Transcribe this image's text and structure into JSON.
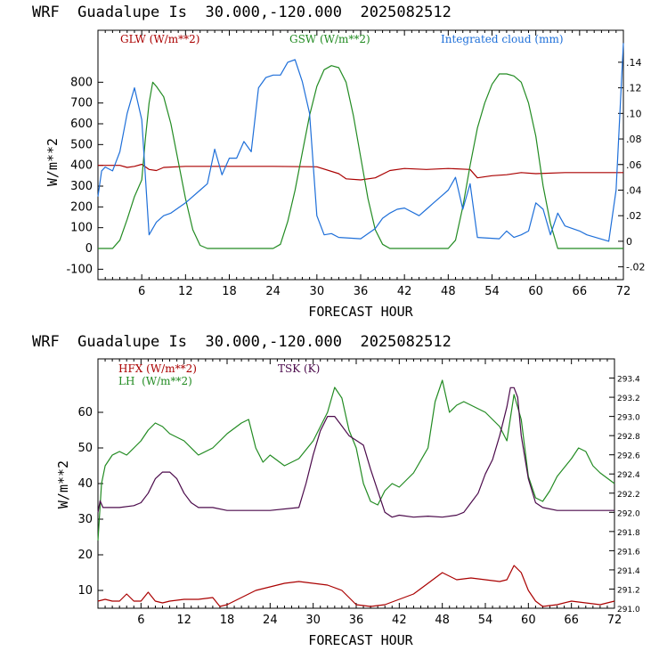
{
  "chart_data": [
    {
      "type": "line",
      "title": "WRF  Guadalupe Is  30.000,-120.000  2025082512",
      "xlabel": "FORECAST HOUR",
      "ylabel": "W/m**2",
      "xlim": [
        0,
        72
      ],
      "ylim": [
        -150,
        1050
      ],
      "y2lim": [
        -0.03,
        0.165
      ],
      "x_ticks": [
        6,
        12,
        18,
        24,
        30,
        36,
        42,
        48,
        54,
        60,
        66,
        72
      ],
      "y_ticks": [
        -100,
        0,
        100,
        200,
        300,
        400,
        500,
        600,
        700,
        800
      ],
      "y2_ticks": [
        -0.02,
        0,
        0.02,
        0.04,
        0.06,
        0.08,
        0.1,
        0.12,
        0.14
      ],
      "y2_tick_labels": [
        "-.02",
        "0",
        ".02",
        ".04",
        ".06",
        ".08",
        ".10",
        ".12",
        ".14"
      ],
      "legend": [
        "GLW (W/m**2)",
        "GSW (W/m**2)",
        "Integrated cloud (mm)"
      ],
      "series": [
        {
          "name": "GLW (W/m**2)",
          "color": "#aa0000",
          "axis": "left",
          "x": [
            0,
            3,
            4,
            5,
            6,
            7,
            8,
            9,
            12,
            18,
            24,
            30,
            33,
            34,
            36,
            38,
            40,
            42,
            45,
            48,
            51,
            52,
            54,
            56,
            58,
            60,
            64,
            72
          ],
          "y": [
            400,
            400,
            390,
            395,
            405,
            380,
            375,
            390,
            395,
            395,
            395,
            393,
            360,
            335,
            330,
            340,
            375,
            385,
            380,
            385,
            380,
            340,
            350,
            355,
            365,
            360,
            365,
            365
          ]
        },
        {
          "name": "GSW (W/m**2)",
          "color": "#228b22",
          "axis": "left",
          "x": [
            0,
            1,
            2,
            3,
            4,
            5,
            6,
            6.5,
            7,
            7.5,
            8,
            9,
            10,
            11,
            12,
            13,
            14,
            15,
            24,
            25,
            26,
            27,
            28,
            29,
            30,
            31,
            32,
            33,
            34,
            35,
            36,
            37,
            38,
            39,
            40,
            48,
            49,
            50,
            51,
            52,
            53,
            54,
            55,
            56,
            57,
            58,
            59,
            60,
            61,
            62,
            63,
            72
          ],
          "y": [
            0,
            0,
            0,
            40,
            140,
            250,
            330,
            530,
            700,
            800,
            780,
            730,
            600,
            420,
            240,
            90,
            15,
            0,
            0,
            20,
            130,
            280,
            460,
            640,
            780,
            860,
            880,
            870,
            800,
            640,
            440,
            240,
            90,
            20,
            0,
            0,
            40,
            200,
            400,
            580,
            700,
            790,
            840,
            840,
            830,
            800,
            700,
            540,
            300,
            120,
            0,
            0
          ]
        },
        {
          "name": "Integrated cloud (mm)",
          "color": "#1e6fd9",
          "axis": "right",
          "x": [
            0,
            0.5,
            1,
            2,
            3,
            4,
            5,
            6,
            6.5,
            7,
            7.5,
            8,
            9,
            10,
            12,
            14,
            15,
            16,
            17,
            18,
            19,
            20,
            21,
            22,
            23,
            24,
            25,
            26,
            27,
            28,
            29,
            30,
            31,
            32,
            33,
            36,
            38,
            39,
            40,
            41,
            42,
            44,
            45,
            46,
            47,
            48,
            49,
            50,
            51,
            52,
            55,
            56,
            57,
            58,
            59,
            60,
            61,
            62,
            63,
            64,
            65,
            66,
            67,
            70,
            71,
            72
          ],
          "y": [
            0.035,
            0.055,
            0.058,
            0.055,
            0.07,
            0.1,
            0.12,
            0.095,
            0.05,
            0.005,
            0.01,
            0.015,
            0.02,
            0.022,
            0.03,
            0.04,
            0.045,
            0.072,
            0.052,
            0.065,
            0.065,
            0.078,
            0.07,
            0.12,
            0.128,
            0.13,
            0.13,
            0.14,
            0.142,
            0.125,
            0.1,
            0.02,
            0.005,
            0.006,
            0.003,
            0.002,
            0.01,
            0.018,
            0.022,
            0.025,
            0.026,
            0.02,
            0.025,
            0.03,
            0.035,
            0.04,
            0.05,
            0.025,
            0.045,
            0.003,
            0.002,
            0.008,
            0.003,
            0.005,
            0.008,
            0.03,
            0.025,
            0.005,
            0.022,
            0.012,
            0.01,
            0.008,
            0.005,
            0,
            0.04,
            0.155
          ]
        }
      ]
    },
    {
      "type": "line",
      "title": "WRF  Guadalupe Is  30.000,-120.000  2025082512",
      "xlabel": "FORECAST HOUR",
      "ylabel": "W/m**2",
      "xlim": [
        0,
        72
      ],
      "ylim": [
        5,
        75
      ],
      "y2lim": [
        291.0,
        293.6
      ],
      "x_ticks": [
        6,
        12,
        18,
        24,
        30,
        36,
        42,
        48,
        54,
        60,
        66,
        72
      ],
      "y_ticks": [
        10,
        20,
        30,
        40,
        50,
        60
      ],
      "y2_ticks": [
        291.0,
        291.2,
        291.4,
        291.6,
        291.8,
        292.0,
        292.2,
        292.4,
        292.6,
        292.8,
        293.0,
        293.2,
        293.4
      ],
      "y2_tick_labels": [
        "291.0",
        "291.2",
        "291.4",
        "291.6",
        "291.8",
        "292.0",
        "292.2",
        "292.4",
        "292.6",
        "292.8",
        "293.0",
        "293.2",
        "293.4"
      ],
      "legend": [
        "HFX (W/m**2)",
        "LH  (W/m**2)",
        "TSK (K)"
      ],
      "series": [
        {
          "name": "HFX (W/m**2)",
          "color": "#aa0000",
          "axis": "left",
          "x": [
            0,
            1,
            2,
            3,
            4,
            5,
            6,
            7,
            8,
            9,
            10,
            12,
            14,
            16,
            17,
            18,
            20,
            22,
            24,
            26,
            28,
            30,
            32,
            34,
            36,
            38,
            40,
            42,
            44,
            46,
            48,
            50,
            52,
            54,
            56,
            57,
            58,
            59,
            60,
            61,
            62,
            64,
            66,
            68,
            70,
            72
          ],
          "y": [
            7,
            7.5,
            7,
            7,
            9,
            7,
            7,
            9.5,
            7,
            6.5,
            7,
            7.5,
            7.5,
            8,
            5.5,
            6,
            8,
            10,
            11,
            12,
            12.5,
            12,
            11.5,
            10,
            6,
            5.5,
            6,
            7.5,
            9,
            12,
            15,
            13,
            13.5,
            13,
            12.5,
            13,
            17,
            15,
            10,
            7,
            5.5,
            6,
            7,
            6.5,
            6,
            7
          ]
        },
        {
          "name": "LH  (W/m**2)",
          "color": "#228b22",
          "axis": "left",
          "x": [
            0,
            0.5,
            1,
            2,
            3,
            4,
            5,
            6,
            7,
            8,
            9,
            10,
            12,
            14,
            16,
            18,
            20,
            21,
            22,
            23,
            24,
            26,
            28,
            30,
            32,
            33,
            34,
            35,
            36,
            37,
            38,
            39,
            40,
            41,
            42,
            44,
            46,
            47,
            48,
            49,
            50,
            51,
            52,
            54,
            56,
            57,
            58,
            59,
            60,
            61,
            62,
            63,
            64,
            66,
            67,
            68,
            69,
            70,
            72
          ],
          "y": [
            24,
            40,
            45,
            48,
            49,
            48,
            50,
            52,
            55,
            57,
            56,
            54,
            52,
            48,
            50,
            54,
            57,
            58,
            50,
            46,
            48,
            45,
            47,
            52,
            60,
            67,
            64,
            55,
            50,
            40,
            35,
            34,
            38,
            40,
            39,
            43,
            50,
            63,
            69,
            60,
            62,
            63,
            62,
            60,
            56,
            52,
            65,
            58,
            42,
            36,
            35,
            38,
            42,
            47,
            50,
            49,
            45,
            43,
            40
          ]
        },
        {
          "name": "TSK (K)",
          "color": "#4b0a4b",
          "axis": "right",
          "x": [
            0,
            0.3,
            0.7,
            1,
            3,
            5,
            6,
            7,
            8,
            9,
            10,
            11,
            12,
            13,
            14,
            15,
            16,
            18,
            24,
            28,
            29,
            30,
            31,
            32,
            33,
            34,
            35,
            36,
            37,
            38,
            40,
            41,
            42,
            44,
            46,
            48,
            50,
            51,
            52,
            53,
            54,
            55,
            56,
            57,
            57.5,
            58,
            58.5,
            59,
            60,
            61,
            62,
            64,
            66,
            68,
            70,
            72
          ],
          "y": [
            292.0,
            292.12,
            292.05,
            292.05,
            292.05,
            292.07,
            292.1,
            292.2,
            292.35,
            292.42,
            292.42,
            292.35,
            292.2,
            292.1,
            292.05,
            292.05,
            292.05,
            292.02,
            292.02,
            292.05,
            292.3,
            292.6,
            292.85,
            293.0,
            293.0,
            292.9,
            292.8,
            292.75,
            292.7,
            292.45,
            292.0,
            291.95,
            291.97,
            291.95,
            291.96,
            291.95,
            291.97,
            292.0,
            292.1,
            292.2,
            292.4,
            292.55,
            292.8,
            293.1,
            293.3,
            293.3,
            293.2,
            292.8,
            292.35,
            292.1,
            292.05,
            292.02,
            292.02,
            292.02,
            292.02,
            292.02
          ]
        }
      ]
    }
  ]
}
